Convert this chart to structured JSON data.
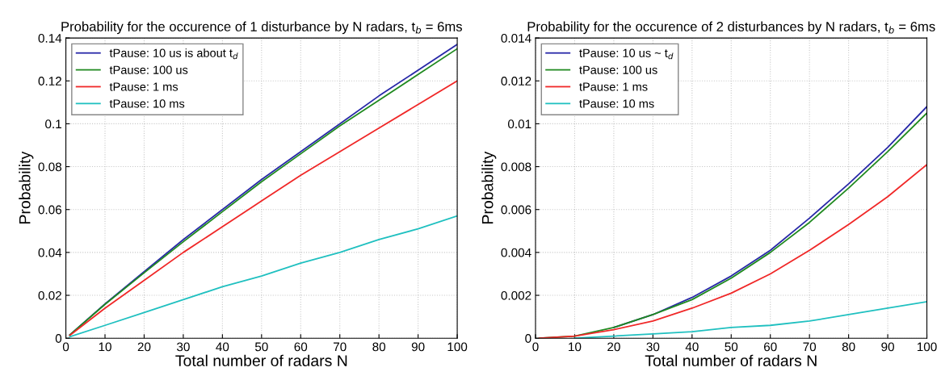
{
  "chart_data": [
    {
      "type": "line",
      "title": "Probability for the occurence of 1 disturbance by N radars, t$_{b}$ = 6ms",
      "xlabel": "Total number of radars N",
      "ylabel": "Probability",
      "x": [
        1,
        10,
        20,
        30,
        40,
        50,
        60,
        70,
        80,
        90,
        100
      ],
      "series": [
        {
          "name": "tPause: 10 us is about t$_{d}$",
          "color": "#2828a8",
          "values": [
            0.0015,
            0.016,
            0.031,
            0.046,
            0.06,
            0.074,
            0.087,
            0.1,
            0.113,
            0.125,
            0.137
          ]
        },
        {
          "name": "tPause: 100 us",
          "color": "#208a20",
          "values": [
            0.0015,
            0.0158,
            0.0305,
            0.045,
            0.059,
            0.073,
            0.086,
            0.099,
            0.111,
            0.123,
            0.135
          ]
        },
        {
          "name": "tPause: 1 ms",
          "color": "#f02828",
          "values": [
            0.0013,
            0.014,
            0.027,
            0.04,
            0.052,
            0.064,
            0.076,
            0.087,
            0.098,
            0.109,
            0.12
          ]
        },
        {
          "name": "tPause: 10 ms",
          "color": "#20c0c0",
          "values": [
            0.0007,
            0.006,
            0.012,
            0.018,
            0.024,
            0.029,
            0.035,
            0.04,
            0.046,
            0.051,
            0.057
          ]
        }
      ],
      "xlim": [
        0,
        100
      ],
      "xticks": [
        0,
        10,
        20,
        30,
        40,
        50,
        60,
        70,
        80,
        90,
        100
      ],
      "ylim": [
        0,
        0.14
      ],
      "yticks": [
        0,
        0.02,
        0.04,
        0.06,
        0.08,
        0.1,
        0.12,
        0.14
      ],
      "grid": true,
      "legend": "top left",
      "line_style": "solid"
    },
    {
      "type": "line",
      "title": "Probability for the occurence of 2 disturbances by N radars, t$_{b}$ = 6ms",
      "xlabel": "Total number of radars N",
      "ylabel": "Probability",
      "x": [
        1,
        10,
        20,
        30,
        40,
        50,
        60,
        70,
        80,
        90,
        100
      ],
      "series": [
        {
          "name": "tPause: 10 us ~ t$_{d}$",
          "color": "#2828a8",
          "values": [
            null,
            null,
            0.0005,
            0.0011,
            0.0019,
            0.0029,
            0.0041,
            0.0056,
            0.0072,
            0.0089,
            0.0108
          ]
        },
        {
          "name": "tPause: 100 us",
          "color": "#208a20",
          "values": [
            0,
            0.0001,
            0.0005,
            0.0011,
            0.0018,
            0.0028,
            0.004,
            0.0054,
            0.007,
            0.0087,
            0.0105
          ]
        },
        {
          "name": "tPause: 1 ms",
          "color": "#f02828",
          "values": [
            0,
            0.0001,
            0.0004,
            0.0008,
            0.0014,
            0.0021,
            0.003,
            0.0041,
            0.0053,
            0.0066,
            0.0081
          ]
        },
        {
          "name": "tPause: 10 ms",
          "color": "#20c0c0",
          "values": [
            null,
            0,
            0.0001,
            0.0002,
            0.0003,
            0.0005,
            0.0006,
            0.0008,
            0.0011,
            0.0014,
            0.0017
          ]
        }
      ],
      "xlim": [
        0,
        100
      ],
      "xticks": [
        0,
        10,
        20,
        30,
        40,
        50,
        60,
        70,
        80,
        90,
        100
      ],
      "ylim": [
        0,
        0.014
      ],
      "yticks": [
        0,
        0.002,
        0.004,
        0.006,
        0.008,
        0.01,
        0.012,
        0.014
      ],
      "grid": true,
      "legend": "top left",
      "line_style": "solid"
    }
  ]
}
